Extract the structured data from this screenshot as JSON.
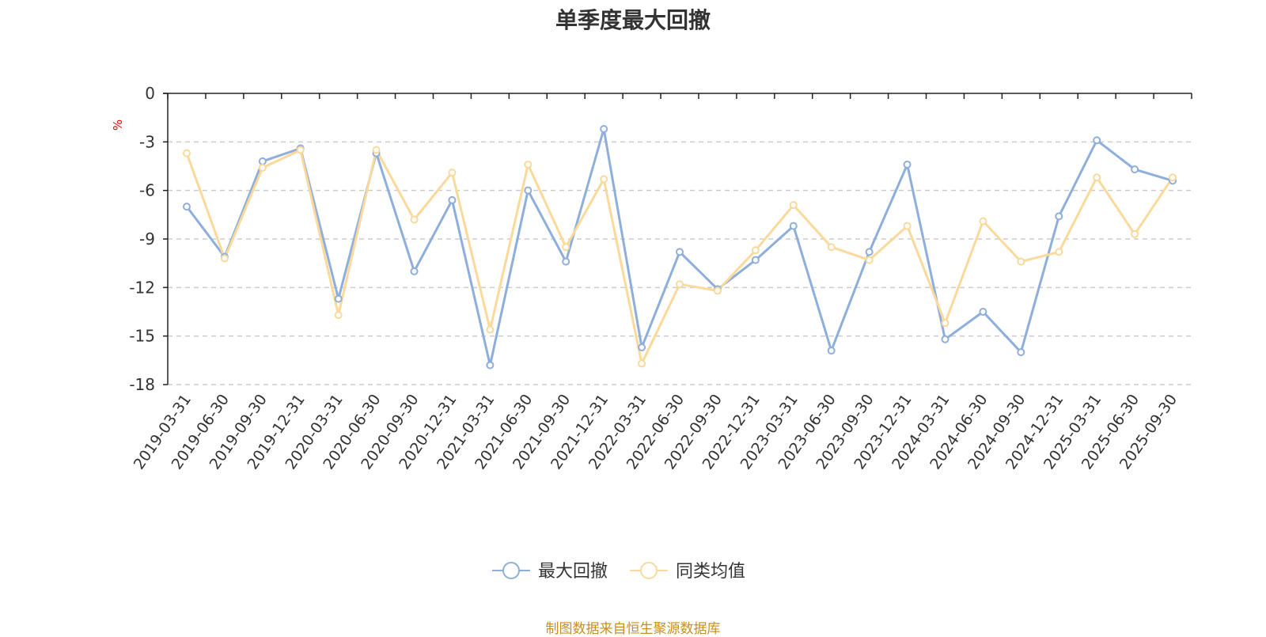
{
  "title": "单季度最大回撤",
  "footer": {
    "source_text": "制图数据来自恒生聚源数据库"
  },
  "colors": {
    "series_1": "#8eaedb",
    "series_2": "#fbd99a",
    "unit": "#ee0000",
    "footer": "#c98f1e",
    "axis": "#222222",
    "grid": "#cccccc",
    "text": "#333333"
  },
  "chart_data": {
    "type": "line",
    "title": "单季度最大回撤",
    "ylabel": "%",
    "ylim": [
      -18,
      0
    ],
    "yticks": [
      0,
      -3,
      -6,
      -9,
      -12,
      -15,
      -18
    ],
    "grid": "horizontal dashed",
    "legend_position": "bottom-center",
    "x": [
      "2019-03-31",
      "2019-06-30",
      "2019-09-30",
      "2019-12-31",
      "2020-03-31",
      "2020-06-30",
      "2020-09-30",
      "2020-12-31",
      "2021-03-31",
      "2021-06-30",
      "2021-09-30",
      "2021-12-31",
      "2022-03-31",
      "2022-06-30",
      "2022-09-30",
      "2022-12-31",
      "2023-03-31",
      "2023-06-30",
      "2023-09-30",
      "2023-12-31",
      "2024-03-31",
      "2024-06-30",
      "2024-09-30",
      "2024-12-31",
      "2025-03-31",
      "2025-06-30",
      "2025-09-30"
    ],
    "series": [
      {
        "name": "最大回撤",
        "values": [
          -7.0,
          -10.1,
          -4.2,
          -3.4,
          -12.7,
          -3.7,
          -11.0,
          -6.6,
          -16.8,
          -6.0,
          -10.4,
          -2.2,
          -15.7,
          -9.8,
          -12.1,
          -10.3,
          -8.2,
          -15.9,
          -9.8,
          -4.4,
          -15.2,
          -13.5,
          -16.0,
          -7.6,
          -2.9,
          -4.7,
          -5.4
        ]
      },
      {
        "name": "同类均值",
        "values": [
          -3.7,
          -10.2,
          -4.6,
          -3.5,
          -13.7,
          -3.5,
          -7.8,
          -4.9,
          -14.6,
          -4.4,
          -9.5,
          -5.3,
          -16.7,
          -11.8,
          -12.2,
          -9.7,
          -6.9,
          -9.5,
          -10.3,
          -8.2,
          -14.2,
          -7.9,
          -10.4,
          -9.8,
          -5.2,
          -8.7,
          -5.2
        ]
      }
    ]
  }
}
